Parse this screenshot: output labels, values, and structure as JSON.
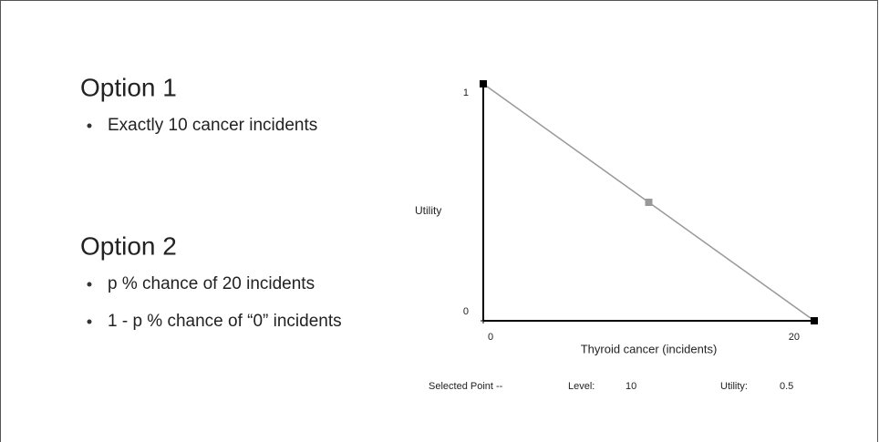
{
  "slide": {
    "options": [
      {
        "title": "Option 1",
        "bullets": [
          "Exactly 10 cancer incidents"
        ]
      },
      {
        "title": "Option 2",
        "bullets": [
          "p % chance of 20 incidents",
          "1 - p % chance of “0” incidents"
        ]
      }
    ],
    "selected": {
      "label": "Selected Point --",
      "level_label": "Level:",
      "level": 10,
      "utility_label": "Utility:",
      "utility": 0.5
    }
  },
  "chart_data": {
    "type": "line",
    "x_label": "Thyroid cancer (incidents)",
    "y_label": "Utility",
    "xlim": [
      0,
      20
    ],
    "ylim": [
      0,
      1
    ],
    "xticks": [
      0,
      20
    ],
    "yticks": [
      0,
      1
    ],
    "series": [
      {
        "name": "Utility",
        "color": "#999999",
        "x": [
          0,
          10,
          20
        ],
        "values": [
          1,
          0.5,
          0
        ]
      }
    ]
  }
}
